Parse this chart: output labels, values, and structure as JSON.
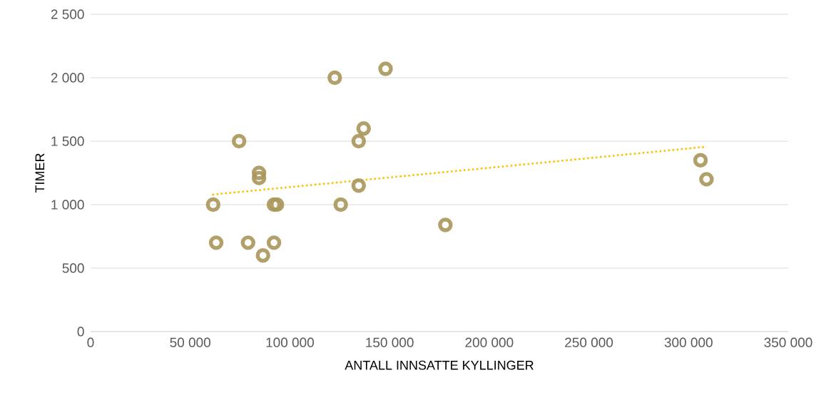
{
  "chart_data": {
    "type": "scatter",
    "xlabel": "ANTALL INNSATTE KYLLINGER",
    "ylabel": "TIMER",
    "xlim": [
      0,
      350000
    ],
    "ylim": [
      0,
      2500
    ],
    "xticks": [
      0,
      {
        "value": 50000,
        "label": "50 000"
      },
      {
        "value": 100000,
        "label": "100 000"
      },
      {
        "value": 150000,
        "label": "150 000"
      },
      {
        "value": 200000,
        "label": "200 000"
      },
      {
        "value": 250000,
        "label": "250 000"
      },
      {
        "value": 300000,
        "label": "300 000"
      },
      {
        "value": 350000,
        "label": "350 000"
      }
    ],
    "yticks": [
      0,
      500,
      {
        "value": 1000,
        "label": "1 000"
      },
      {
        "value": 1500,
        "label": "1 500"
      },
      {
        "value": 2000,
        "label": "2 000"
      },
      {
        "value": 2500,
        "label": "2 500"
      }
    ],
    "grid": "y",
    "marker": "circle",
    "series": [
      {
        "color": "#a8965a",
        "x": [
          61500,
          63000,
          74500,
          79000,
          84500,
          84500,
          86500,
          92000,
          93500,
          92000,
          122500,
          125500,
          134500,
          134500,
          137000,
          148000,
          178000,
          306000,
          309000
        ],
        "values": [
          1000,
          700,
          1500,
          700,
          1250,
          1210,
          600,
          1000,
          1000,
          700,
          2000,
          1000,
          1500,
          1150,
          1600,
          2070,
          840,
          1350,
          1200
        ]
      },
      {
        "type": "line",
        "color": "#ffc000",
        "line_style": "dotted",
        "marker": "none",
        "x": [
          61500,
          308000
        ],
        "values": [
          1080,
          1455
        ]
      }
    ]
  }
}
